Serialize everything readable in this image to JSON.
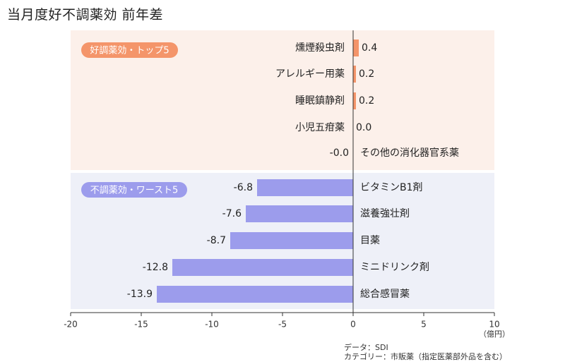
{
  "title": "当月度好不調薬効 前年差",
  "unit": "（億円）",
  "source": "データ：SDI",
  "category_note": "カテゴリー：市販薬（指定医薬部外品を含む）",
  "colors": {
    "top_panel_bg": "#fcf0ea",
    "bottom_panel_bg": "#eef0f8",
    "top_bar": "#f4956a",
    "bottom_bar": "#9c9cec",
    "top_badge": "#f4956a",
    "bottom_badge": "#9c9cec"
  },
  "chart_data": {
    "type": "bar",
    "orientation": "horizontal",
    "xlim": [
      -20,
      10
    ],
    "xticks": [
      -20,
      -15,
      -10,
      -5,
      0,
      5,
      10
    ],
    "xtick_labels": [
      "-20",
      "-15",
      "-10",
      "-5",
      "0",
      "5",
      "10"
    ],
    "groups": [
      {
        "label": "好調薬効・トップ5",
        "categories": [
          "燻煙殺虫剤",
          "アレルギー用薬",
          "睡眠鎮静剤",
          "小児五疳薬",
          "その他の消化器官系薬"
        ],
        "values": [
          0.4,
          0.2,
          0.2,
          0.0,
          -0.0
        ],
        "value_labels": [
          "0.4",
          "0.2",
          "0.2",
          "0.0",
          "-0.0"
        ]
      },
      {
        "label": "不調薬効・ワースト5",
        "categories": [
          "ビタミンB1剤",
          "滋養強壮剤",
          "目薬",
          "ミニドリンク剤",
          "総合感冒薬"
        ],
        "values": [
          -6.8,
          -7.6,
          -8.7,
          -12.8,
          -13.9
        ],
        "value_labels": [
          "-6.8",
          "-7.6",
          "-8.7",
          "-12.8",
          "-13.9"
        ]
      }
    ]
  }
}
